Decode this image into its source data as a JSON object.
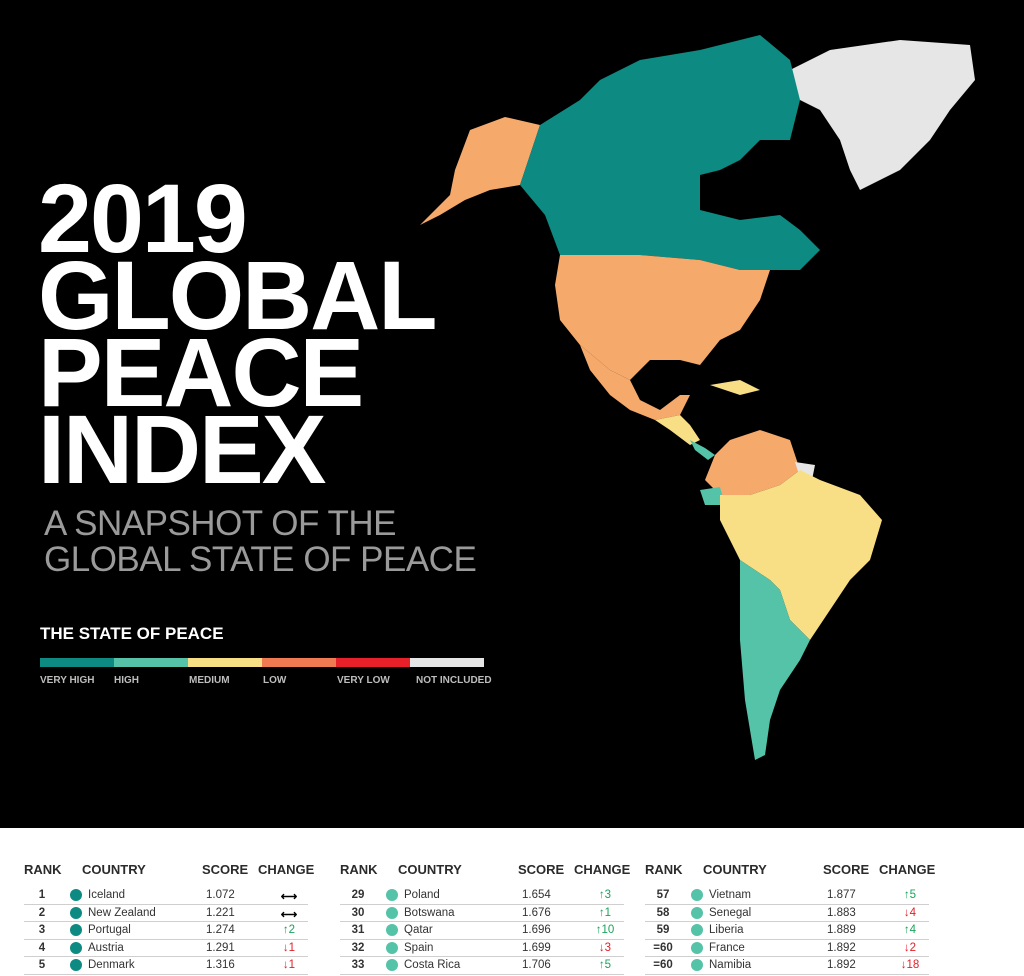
{
  "title": {
    "line1": "2019",
    "line2": "GLOBAL",
    "line3": "PEACE",
    "line4": "INDEX"
  },
  "subtitle": {
    "line1": "A SNAPSHOT OF THE",
    "line2": "GLOBAL STATE OF PEACE"
  },
  "legend": {
    "title": "THE STATE OF PEACE",
    "items": [
      {
        "label": "VERY HIGH",
        "color": "#0d8a82"
      },
      {
        "label": "HIGH",
        "color": "#55c3a8"
      },
      {
        "label": "MEDIUM",
        "color": "#f8df86"
      },
      {
        "label": "LOW",
        "color": "#f07a52"
      },
      {
        "label": "VERY LOW",
        "color": "#e8202a"
      },
      {
        "label": "NOT INCLUDED",
        "color": "#e6e6e6"
      }
    ]
  },
  "map_colors": {
    "canada": "#0d8a82",
    "usa": "#f5a96b",
    "mexico": "#f5a96b",
    "greenland": "#e6e6e6",
    "colombia_venezuela": "#f5a96b",
    "brazil": "#f8df86",
    "southern_cone": "#55c3a8"
  },
  "table": {
    "headers": {
      "rank": "RANK",
      "country": "COUNTRY",
      "score": "SCORE",
      "change": "CHANGE"
    },
    "groups": [
      [
        {
          "rank": "1",
          "country": "Iceland",
          "score": "1.072",
          "change": "",
          "dir": "same",
          "level": "very-high"
        },
        {
          "rank": "2",
          "country": "New Zealand",
          "score": "1.221",
          "change": "",
          "dir": "same",
          "level": "very-high"
        },
        {
          "rank": "3",
          "country": "Portugal",
          "score": "1.274",
          "change": "2",
          "dir": "up",
          "level": "very-high"
        },
        {
          "rank": "4",
          "country": "Austria",
          "score": "1.291",
          "change": "1",
          "dir": "down",
          "level": "very-high"
        },
        {
          "rank": "5",
          "country": "Denmark",
          "score": "1.316",
          "change": "1",
          "dir": "down",
          "level": "very-high"
        }
      ],
      [
        {
          "rank": "29",
          "country": "Poland",
          "score": "1.654",
          "change": "3",
          "dir": "up",
          "level": "high"
        },
        {
          "rank": "30",
          "country": "Botswana",
          "score": "1.676",
          "change": "1",
          "dir": "up",
          "level": "high"
        },
        {
          "rank": "31",
          "country": "Qatar",
          "score": "1.696",
          "change": "10",
          "dir": "up",
          "level": "high"
        },
        {
          "rank": "32",
          "country": "Spain",
          "score": "1.699",
          "change": "3",
          "dir": "down",
          "level": "high"
        },
        {
          "rank": "33",
          "country": "Costa Rica",
          "score": "1.706",
          "change": "5",
          "dir": "up",
          "level": "high"
        }
      ],
      [
        {
          "rank": "57",
          "country": "Vietnam",
          "score": "1.877",
          "change": "5",
          "dir": "up",
          "level": "high"
        },
        {
          "rank": "58",
          "country": "Senegal",
          "score": "1.883",
          "change": "4",
          "dir": "down",
          "level": "high"
        },
        {
          "rank": "59",
          "country": "Liberia",
          "score": "1.889",
          "change": "4",
          "dir": "up",
          "level": "high"
        },
        {
          "rank": "=60",
          "country": "France",
          "score": "1.892",
          "change": "2",
          "dir": "down",
          "level": "high"
        },
        {
          "rank": "=60",
          "country": "Namibia",
          "score": "1.892",
          "change": "18",
          "dir": "down",
          "level": "high"
        }
      ]
    ]
  }
}
